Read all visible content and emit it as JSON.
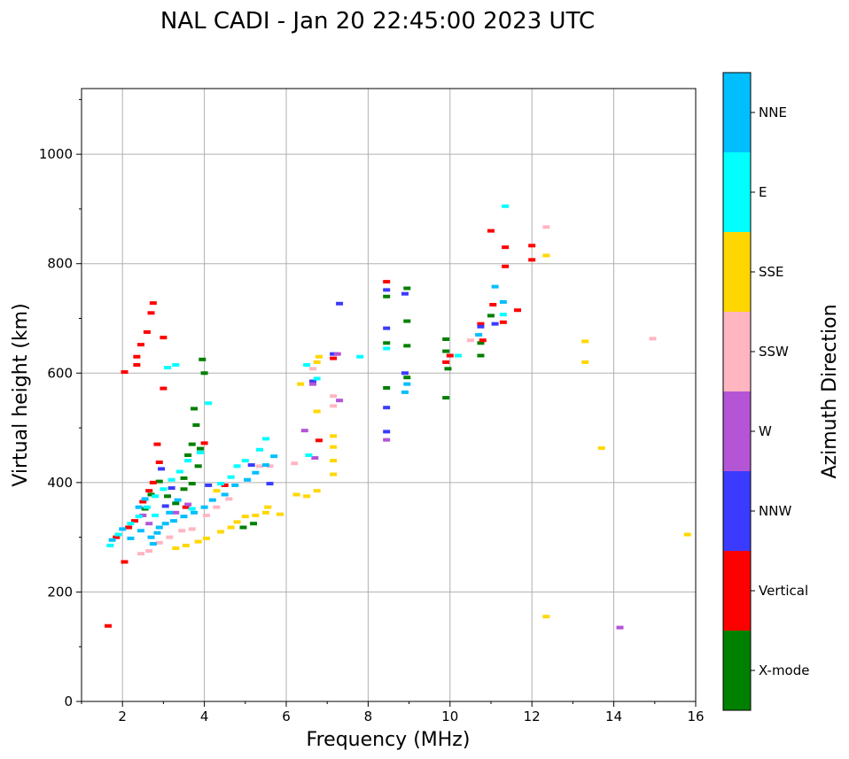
{
  "chart_data": {
    "type": "scatter",
    "title": "NAL CADI - Jan 20 22:45:00 2023 UTC",
    "xlabel": "Frequency (MHz)",
    "ylabel": "Virtual height (km)",
    "xlim": [
      1,
      16
    ],
    "ylim": [
      0,
      1120
    ],
    "xticks": [
      2,
      4,
      6,
      8,
      10,
      12,
      14,
      16
    ],
    "yticks": [
      0,
      200,
      400,
      600,
      800,
      1000
    ],
    "grid": true,
    "colorbar": {
      "label": "Azimuth Direction",
      "categories": [
        {
          "name": "X-mode",
          "color": "#008000"
        },
        {
          "name": "Vertical",
          "color": "#ff0000"
        },
        {
          "name": "NNW",
          "color": "#3b3bff"
        },
        {
          "name": "W",
          "color": "#b455d6"
        },
        {
          "name": "SSW",
          "color": "#ffb6c1"
        },
        {
          "name": "SSE",
          "color": "#ffd700"
        },
        {
          "name": "E",
          "color": "#00ffff"
        },
        {
          "name": "NNE",
          "color": "#00bfff"
        }
      ]
    },
    "series": [
      {
        "name": "X-mode",
        "points": [
          [
            2.55,
            352
          ],
          [
            2.7,
            378
          ],
          [
            2.9,
            402
          ],
          [
            3.1,
            375
          ],
          [
            3.3,
            362
          ],
          [
            3.5,
            388
          ],
          [
            3.7,
            398
          ],
          [
            3.85,
            430
          ],
          [
            4.0,
            600
          ],
          [
            3.95,
            625
          ],
          [
            3.75,
            535
          ],
          [
            3.8,
            505
          ],
          [
            3.9,
            462
          ],
          [
            3.5,
            408
          ],
          [
            5.2,
            325
          ],
          [
            4.95,
            318
          ],
          [
            8.45,
            740
          ],
          [
            8.45,
            655
          ],
          [
            8.45,
            573
          ],
          [
            8.95,
            755
          ],
          [
            8.95,
            695
          ],
          [
            8.95,
            650
          ],
          [
            8.95,
            592
          ],
          [
            9.9,
            662
          ],
          [
            9.9,
            640
          ],
          [
            9.95,
            608
          ],
          [
            9.9,
            555
          ],
          [
            10.75,
            632
          ],
          [
            10.75,
            655
          ],
          [
            11.0,
            705
          ],
          [
            3.6,
            450
          ],
          [
            3.7,
            470
          ]
        ]
      },
      {
        "name": "Vertical",
        "points": [
          [
            1.65,
            138
          ],
          [
            1.85,
            300
          ],
          [
            2.05,
            602
          ],
          [
            2.35,
            615
          ],
          [
            2.35,
            630
          ],
          [
            2.45,
            652
          ],
          [
            2.6,
            675
          ],
          [
            2.7,
            710
          ],
          [
            2.75,
            728
          ],
          [
            3.0,
            665
          ],
          [
            3.0,
            572
          ],
          [
            2.85,
            470
          ],
          [
            2.9,
            437
          ],
          [
            2.75,
            400
          ],
          [
            2.65,
            385
          ],
          [
            2.5,
            365
          ],
          [
            2.3,
            330
          ],
          [
            2.15,
            318
          ],
          [
            3.55,
            355
          ],
          [
            4.0,
            472
          ],
          [
            4.5,
            395
          ],
          [
            6.8,
            477
          ],
          [
            7.15,
            627
          ],
          [
            8.45,
            767
          ],
          [
            9.9,
            620
          ],
          [
            10.0,
            632
          ],
          [
            10.75,
            690
          ],
          [
            10.8,
            660
          ],
          [
            11.05,
            725
          ],
          [
            11.3,
            693
          ],
          [
            11.0,
            860
          ],
          [
            11.35,
            830
          ],
          [
            11.35,
            795
          ],
          [
            11.65,
            715
          ],
          [
            12.0,
            833
          ],
          [
            12.0,
            807
          ],
          [
            2.05,
            255
          ]
        ]
      },
      {
        "name": "NNW",
        "points": [
          [
            2.95,
            425
          ],
          [
            3.05,
            357
          ],
          [
            3.2,
            390
          ],
          [
            4.1,
            395
          ],
          [
            5.15,
            432
          ],
          [
            6.65,
            585
          ],
          [
            7.15,
            635
          ],
          [
            7.3,
            727
          ],
          [
            8.45,
            752
          ],
          [
            8.45,
            682
          ],
          [
            8.45,
            537
          ],
          [
            8.45,
            493
          ],
          [
            8.9,
            745
          ],
          [
            8.9,
            600
          ],
          [
            10.75,
            685
          ],
          [
            11.1,
            690
          ],
          [
            5.6,
            398
          ]
        ]
      },
      {
        "name": "W",
        "points": [
          [
            2.5,
            340
          ],
          [
            2.65,
            325
          ],
          [
            3.3,
            345
          ],
          [
            3.6,
            360
          ],
          [
            6.45,
            495
          ],
          [
            6.65,
            580
          ],
          [
            7.3,
            550
          ],
          [
            8.45,
            478
          ],
          [
            14.15,
            135
          ],
          [
            7.25,
            635
          ],
          [
            6.7,
            445
          ]
        ]
      },
      {
        "name": "SSW",
        "points": [
          [
            2.45,
            270
          ],
          [
            2.65,
            275
          ],
          [
            2.9,
            290
          ],
          [
            3.15,
            300
          ],
          [
            3.45,
            312
          ],
          [
            3.7,
            315
          ],
          [
            4.05,
            340
          ],
          [
            4.3,
            355
          ],
          [
            4.6,
            370
          ],
          [
            5.05,
            405
          ],
          [
            5.35,
            430
          ],
          [
            5.6,
            430
          ],
          [
            6.2,
            435
          ],
          [
            6.65,
            608
          ],
          [
            7.15,
            540
          ],
          [
            7.15,
            558
          ],
          [
            10.5,
            660
          ],
          [
            12.35,
            867
          ],
          [
            14.95,
            663
          ]
        ]
      },
      {
        "name": "SSE",
        "points": [
          [
            3.3,
            280
          ],
          [
            3.55,
            285
          ],
          [
            3.85,
            292
          ],
          [
            4.05,
            298
          ],
          [
            4.4,
            310
          ],
          [
            4.65,
            318
          ],
          [
            4.8,
            328
          ],
          [
            5.0,
            338
          ],
          [
            5.25,
            340
          ],
          [
            5.5,
            345
          ],
          [
            5.85,
            342
          ],
          [
            6.25,
            378
          ],
          [
            6.5,
            375
          ],
          [
            6.75,
            385
          ],
          [
            6.75,
            620
          ],
          [
            6.8,
            630
          ],
          [
            7.15,
            415
          ],
          [
            7.15,
            440
          ],
          [
            7.15,
            465
          ],
          [
            7.15,
            485
          ],
          [
            6.75,
            530
          ],
          [
            6.35,
            580
          ],
          [
            12.35,
            155
          ],
          [
            12.35,
            815
          ],
          [
            13.3,
            658
          ],
          [
            13.3,
            620
          ],
          [
            13.7,
            463
          ],
          [
            15.8,
            305
          ],
          [
            4.3,
            385
          ],
          [
            5.55,
            355
          ]
        ]
      },
      {
        "name": "E",
        "points": [
          [
            1.7,
            285
          ],
          [
            1.9,
            305
          ],
          [
            2.2,
            325
          ],
          [
            2.4,
            338
          ],
          [
            2.6,
            355
          ],
          [
            2.8,
            375
          ],
          [
            3.0,
            388
          ],
          [
            3.2,
            405
          ],
          [
            3.4,
            420
          ],
          [
            3.6,
            440
          ],
          [
            3.9,
            455
          ],
          [
            4.1,
            545
          ],
          [
            3.1,
            610
          ],
          [
            3.3,
            615
          ],
          [
            4.4,
            398
          ],
          [
            4.65,
            410
          ],
          [
            5.0,
            440
          ],
          [
            5.35,
            460
          ],
          [
            5.5,
            480
          ],
          [
            6.55,
            450
          ],
          [
            6.5,
            615
          ],
          [
            6.75,
            590
          ],
          [
            7.8,
            630
          ],
          [
            8.45,
            645
          ],
          [
            10.2,
            632
          ],
          [
            11.3,
            707
          ],
          [
            11.35,
            905
          ],
          [
            2.8,
            340
          ],
          [
            3.7,
            352
          ],
          [
            4.8,
            430
          ]
        ]
      },
      {
        "name": "NNE",
        "points": [
          [
            1.75,
            295
          ],
          [
            2.0,
            315
          ],
          [
            2.2,
            298
          ],
          [
            2.45,
            312
          ],
          [
            2.7,
            300
          ],
          [
            2.85,
            308
          ],
          [
            3.05,
            325
          ],
          [
            3.25,
            330
          ],
          [
            3.5,
            338
          ],
          [
            3.75,
            345
          ],
          [
            4.0,
            355
          ],
          [
            4.2,
            368
          ],
          [
            4.5,
            378
          ],
          [
            4.75,
            395
          ],
          [
            5.05,
            405
          ],
          [
            5.25,
            418
          ],
          [
            5.5,
            432
          ],
          [
            5.7,
            448
          ],
          [
            2.75,
            288
          ],
          [
            2.9,
            318
          ],
          [
            3.15,
            345
          ],
          [
            3.35,
            368
          ],
          [
            8.9,
            565
          ],
          [
            8.95,
            580
          ],
          [
            10.7,
            670
          ],
          [
            11.1,
            758
          ],
          [
            11.3,
            730
          ],
          [
            2.4,
            355
          ],
          [
            2.55,
            370
          ]
        ]
      }
    ]
  }
}
